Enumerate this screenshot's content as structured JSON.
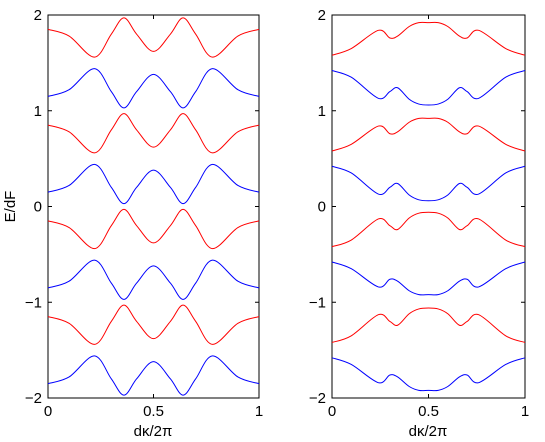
{
  "chart_data": [
    {
      "type": "line",
      "title": "",
      "xlabel": "dκ/2π",
      "ylabel": "E/dF",
      "xlim": [
        0,
        1
      ],
      "ylim": [
        -2,
        2
      ],
      "xticks": [
        "0",
        "0.5",
        "1"
      ],
      "yticks": [
        "−2",
        "−1",
        "0",
        "1",
        "2"
      ],
      "grid": false,
      "x": [
        0,
        0.1,
        0.22,
        0.3,
        0.36,
        0.42,
        0.5,
        0.58,
        0.64,
        0.7,
        0.78,
        0.9,
        1
      ],
      "series": [
        {
          "color": "#ff0000",
          "values": [
            1.85,
            1.78,
            1.56,
            1.8,
            1.97,
            1.8,
            1.62,
            1.8,
            1.97,
            1.8,
            1.56,
            1.78,
            1.85
          ]
        },
        {
          "color": "#0000ff",
          "values": [
            1.15,
            1.22,
            1.44,
            1.2,
            1.03,
            1.2,
            1.38,
            1.2,
            1.03,
            1.2,
            1.44,
            1.22,
            1.15
          ]
        },
        {
          "color": "#ff0000",
          "values": [
            0.85,
            0.78,
            0.56,
            0.8,
            0.97,
            0.8,
            0.62,
            0.8,
            0.97,
            0.8,
            0.56,
            0.78,
            0.85
          ]
        },
        {
          "color": "#0000ff",
          "values": [
            0.15,
            0.22,
            0.44,
            0.2,
            0.03,
            0.2,
            0.38,
            0.2,
            0.03,
            0.2,
            0.44,
            0.22,
            0.15
          ]
        },
        {
          "color": "#ff0000",
          "values": [
            -0.15,
            -0.22,
            -0.44,
            -0.2,
            -0.03,
            -0.2,
            -0.38,
            -0.2,
            -0.03,
            -0.2,
            -0.44,
            -0.22,
            -0.15
          ]
        },
        {
          "color": "#0000ff",
          "values": [
            -0.85,
            -0.78,
            -0.56,
            -0.8,
            -0.97,
            -0.8,
            -0.62,
            -0.8,
            -0.97,
            -0.8,
            -0.56,
            -0.78,
            -0.85
          ]
        },
        {
          "color": "#ff0000",
          "values": [
            -1.15,
            -1.22,
            -1.44,
            -1.2,
            -1.03,
            -1.2,
            -1.38,
            -1.2,
            -1.03,
            -1.2,
            -1.44,
            -1.22,
            -1.15
          ]
        },
        {
          "color": "#0000ff",
          "values": [
            -1.85,
            -1.78,
            -1.56,
            -1.8,
            -1.97,
            -1.8,
            -1.62,
            -1.8,
            -1.97,
            -1.8,
            -1.56,
            -1.78,
            -1.85
          ]
        }
      ]
    },
    {
      "type": "line",
      "title": "",
      "xlabel": "dκ/2π",
      "ylabel": "",
      "xlim": [
        0,
        1
      ],
      "ylim": [
        -2,
        2
      ],
      "xticks": [
        "0",
        "0.5",
        "1"
      ],
      "yticks": [
        "−2",
        "−1",
        "0",
        "1",
        "2"
      ],
      "grid": false,
      "x": [
        0,
        0.1,
        0.24,
        0.3,
        0.34,
        0.4,
        0.45,
        0.5,
        0.55,
        0.6,
        0.66,
        0.7,
        0.76,
        0.9,
        1
      ],
      "series": [
        {
          "color": "#ff0000",
          "values": [
            1.58,
            1.65,
            1.84,
            1.76,
            1.78,
            1.88,
            1.92,
            1.92,
            1.92,
            1.88,
            1.78,
            1.76,
            1.84,
            1.65,
            1.58
          ]
        },
        {
          "color": "#0000ff",
          "values": [
            1.42,
            1.35,
            1.13,
            1.2,
            1.24,
            1.12,
            1.07,
            1.06,
            1.07,
            1.12,
            1.24,
            1.2,
            1.13,
            1.35,
            1.42
          ]
        },
        {
          "color": "#ff0000",
          "values": [
            0.58,
            0.65,
            0.84,
            0.76,
            0.78,
            0.88,
            0.92,
            0.92,
            0.92,
            0.88,
            0.78,
            0.76,
            0.84,
            0.65,
            0.58
          ]
        },
        {
          "color": "#0000ff",
          "values": [
            0.42,
            0.35,
            0.13,
            0.2,
            0.24,
            0.12,
            0.07,
            0.06,
            0.07,
            0.12,
            0.24,
            0.2,
            0.13,
            0.35,
            0.42
          ]
        },
        {
          "color": "#ff0000",
          "values": [
            -0.42,
            -0.35,
            -0.13,
            -0.2,
            -0.24,
            -0.12,
            -0.07,
            -0.06,
            -0.07,
            -0.12,
            -0.24,
            -0.2,
            -0.13,
            -0.35,
            -0.42
          ]
        },
        {
          "color": "#0000ff",
          "values": [
            -0.58,
            -0.65,
            -0.84,
            -0.76,
            -0.78,
            -0.88,
            -0.92,
            -0.92,
            -0.92,
            -0.88,
            -0.78,
            -0.76,
            -0.84,
            -0.65,
            -0.58
          ]
        },
        {
          "color": "#ff0000",
          "values": [
            -1.42,
            -1.35,
            -1.13,
            -1.2,
            -1.24,
            -1.12,
            -1.07,
            -1.06,
            -1.07,
            -1.12,
            -1.24,
            -1.2,
            -1.13,
            -1.35,
            -1.42
          ]
        },
        {
          "color": "#0000ff",
          "values": [
            -1.58,
            -1.65,
            -1.84,
            -1.76,
            -1.78,
            -1.88,
            -1.92,
            -1.92,
            -1.92,
            -1.88,
            -1.78,
            -1.76,
            -1.84,
            -1.65,
            -1.58
          ]
        }
      ]
    }
  ]
}
